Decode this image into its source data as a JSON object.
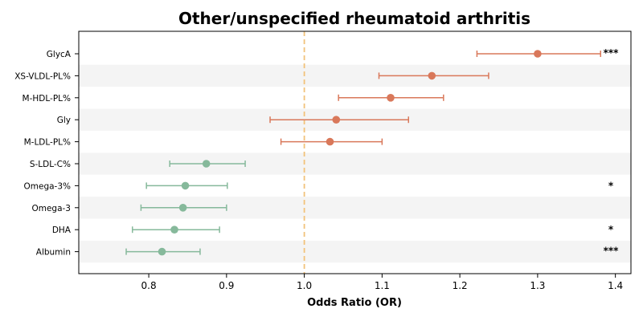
{
  "chart_data": {
    "type": "forest",
    "title": "Other/unspecified rheumatoid arthritis",
    "xlabel": "Odds Ratio (OR)",
    "xlim": [
      0.71,
      1.42
    ],
    "xticks": [
      0.8,
      0.9,
      1.0,
      1.1,
      1.2,
      1.3,
      1.4
    ],
    "xtick_labels": [
      "0.8",
      "0.9",
      "1.0",
      "1.1",
      "1.2",
      "1.3",
      "1.4"
    ],
    "reference_line": 1.0,
    "colors": {
      "increased_risk": "#d9785a",
      "decreased_risk": "#86b99b",
      "reference_line": "#f2c27a",
      "band": "#f4f4f4"
    },
    "rows": [
      {
        "label": "GlycA",
        "or": 1.3,
        "lower": 1.222,
        "upper": 1.381,
        "sig": "***"
      },
      {
        "label": "XS-VLDL-PL%",
        "or": 1.164,
        "lower": 1.096,
        "upper": 1.237,
        "sig": ""
      },
      {
        "label": "M-HDL-PL%",
        "or": 1.111,
        "lower": 1.044,
        "upper": 1.179,
        "sig": ""
      },
      {
        "label": "Gly",
        "or": 1.041,
        "lower": 0.956,
        "upper": 1.134,
        "sig": ""
      },
      {
        "label": "M-LDL-PL%",
        "or": 1.033,
        "lower": 0.97,
        "upper": 1.1,
        "sig": ""
      },
      {
        "label": "S-LDL-C%",
        "or": 0.874,
        "lower": 0.827,
        "upper": 0.924,
        "sig": ""
      },
      {
        "label": "Omega-3%",
        "or": 0.847,
        "lower": 0.797,
        "upper": 0.901,
        "sig": "*"
      },
      {
        "label": "Omega-3",
        "or": 0.844,
        "lower": 0.79,
        "upper": 0.9,
        "sig": ""
      },
      {
        "label": "DHA",
        "or": 0.833,
        "lower": 0.779,
        "upper": 0.891,
        "sig": "*"
      },
      {
        "label": "Albumin",
        "or": 0.817,
        "lower": 0.771,
        "upper": 0.866,
        "sig": "***"
      }
    ]
  }
}
